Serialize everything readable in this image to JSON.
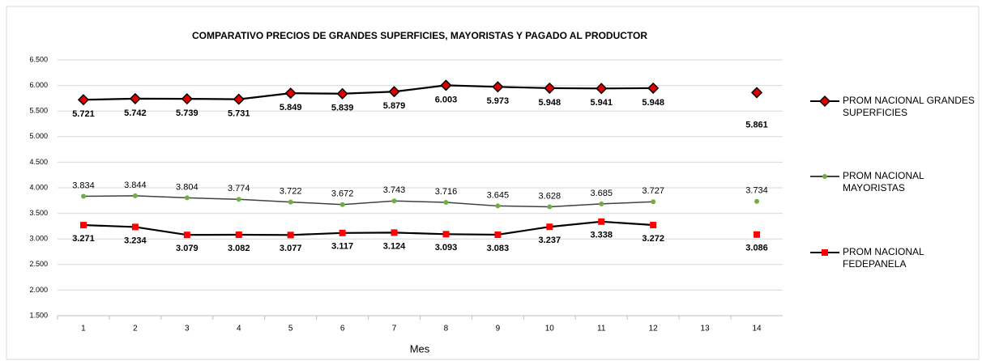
{
  "chart_data": {
    "type": "line",
    "title": "COMPARATIVO PRECIOS DE GRANDES SUPERFICIES, MAYORISTAS Y PAGADO AL PRODUCTOR",
    "xlabel": "Mes",
    "categories": [
      "1",
      "2",
      "3",
      "4",
      "5",
      "6",
      "7",
      "8",
      "9",
      "10",
      "11",
      "12",
      "13",
      "14"
    ],
    "ylim": [
      1500,
      6500
    ],
    "yticks": [
      {
        "value": 1500,
        "label": "1.500"
      },
      {
        "value": 2000,
        "label": "2.000"
      },
      {
        "value": 2500,
        "label": "2.500"
      },
      {
        "value": 3000,
        "label": "3.000"
      },
      {
        "value": 3500,
        "label": "3.500"
      },
      {
        "value": 4000,
        "label": "4.000"
      },
      {
        "value": 4500,
        "label": "4.500"
      },
      {
        "value": 5000,
        "label": "5.000"
      },
      {
        "value": 5500,
        "label": "5.500"
      },
      {
        "value": 6000,
        "label": "6.000"
      },
      {
        "value": 6500,
        "label": "6.500"
      }
    ],
    "grid": true,
    "legend": "right",
    "series": [
      {
        "name": "PROM NACIONAL  GRANDES SUPERFICIES",
        "color": "#000000",
        "marker": "diamond",
        "marker_color": "#e00000",
        "values": [
          5721,
          5742,
          5739,
          5731,
          5849,
          5839,
          5879,
          6003,
          5973,
          5948,
          5941,
          5948,
          null,
          5861
        ],
        "value_labels": [
          "5.721",
          "5.742",
          "5.739",
          "5.731",
          "5.849",
          "5.839",
          "5.879",
          "6.003",
          "5.973",
          "5.948",
          "5.941",
          "5.948",
          null,
          "5.861"
        ]
      },
      {
        "name": "PROM NACIONAL MAYORISTAS",
        "color": "#404040",
        "marker": "circle",
        "marker_color": "#70ad47",
        "values": [
          3834,
          3844,
          3804,
          3774,
          3722,
          3672,
          3743,
          3716,
          3645,
          3628,
          3685,
          3727,
          null,
          3734
        ],
        "value_labels": [
          "3.834",
          "3.844",
          "3.804",
          "3.774",
          "3.722",
          "3.672",
          "3.743",
          "3.716",
          "3.645",
          "3.628",
          "3.685",
          "3.727",
          null,
          "3.734"
        ]
      },
      {
        "name": "PROM NACIONAL FEDEPANELA",
        "color": "#000000",
        "marker": "square",
        "marker_color": "#ff0000",
        "values": [
          3271,
          3234,
          3079,
          3082,
          3077,
          3117,
          3124,
          3093,
          3083,
          3237,
          3338,
          3272,
          null,
          3086
        ],
        "value_labels": [
          "3.271",
          "3.234",
          "3.079",
          "3.082",
          "3.077",
          "3.117",
          "3.124",
          "3.093",
          "3.083",
          "3.237",
          "3.338",
          "3.272",
          null,
          "3.086"
        ]
      }
    ]
  }
}
